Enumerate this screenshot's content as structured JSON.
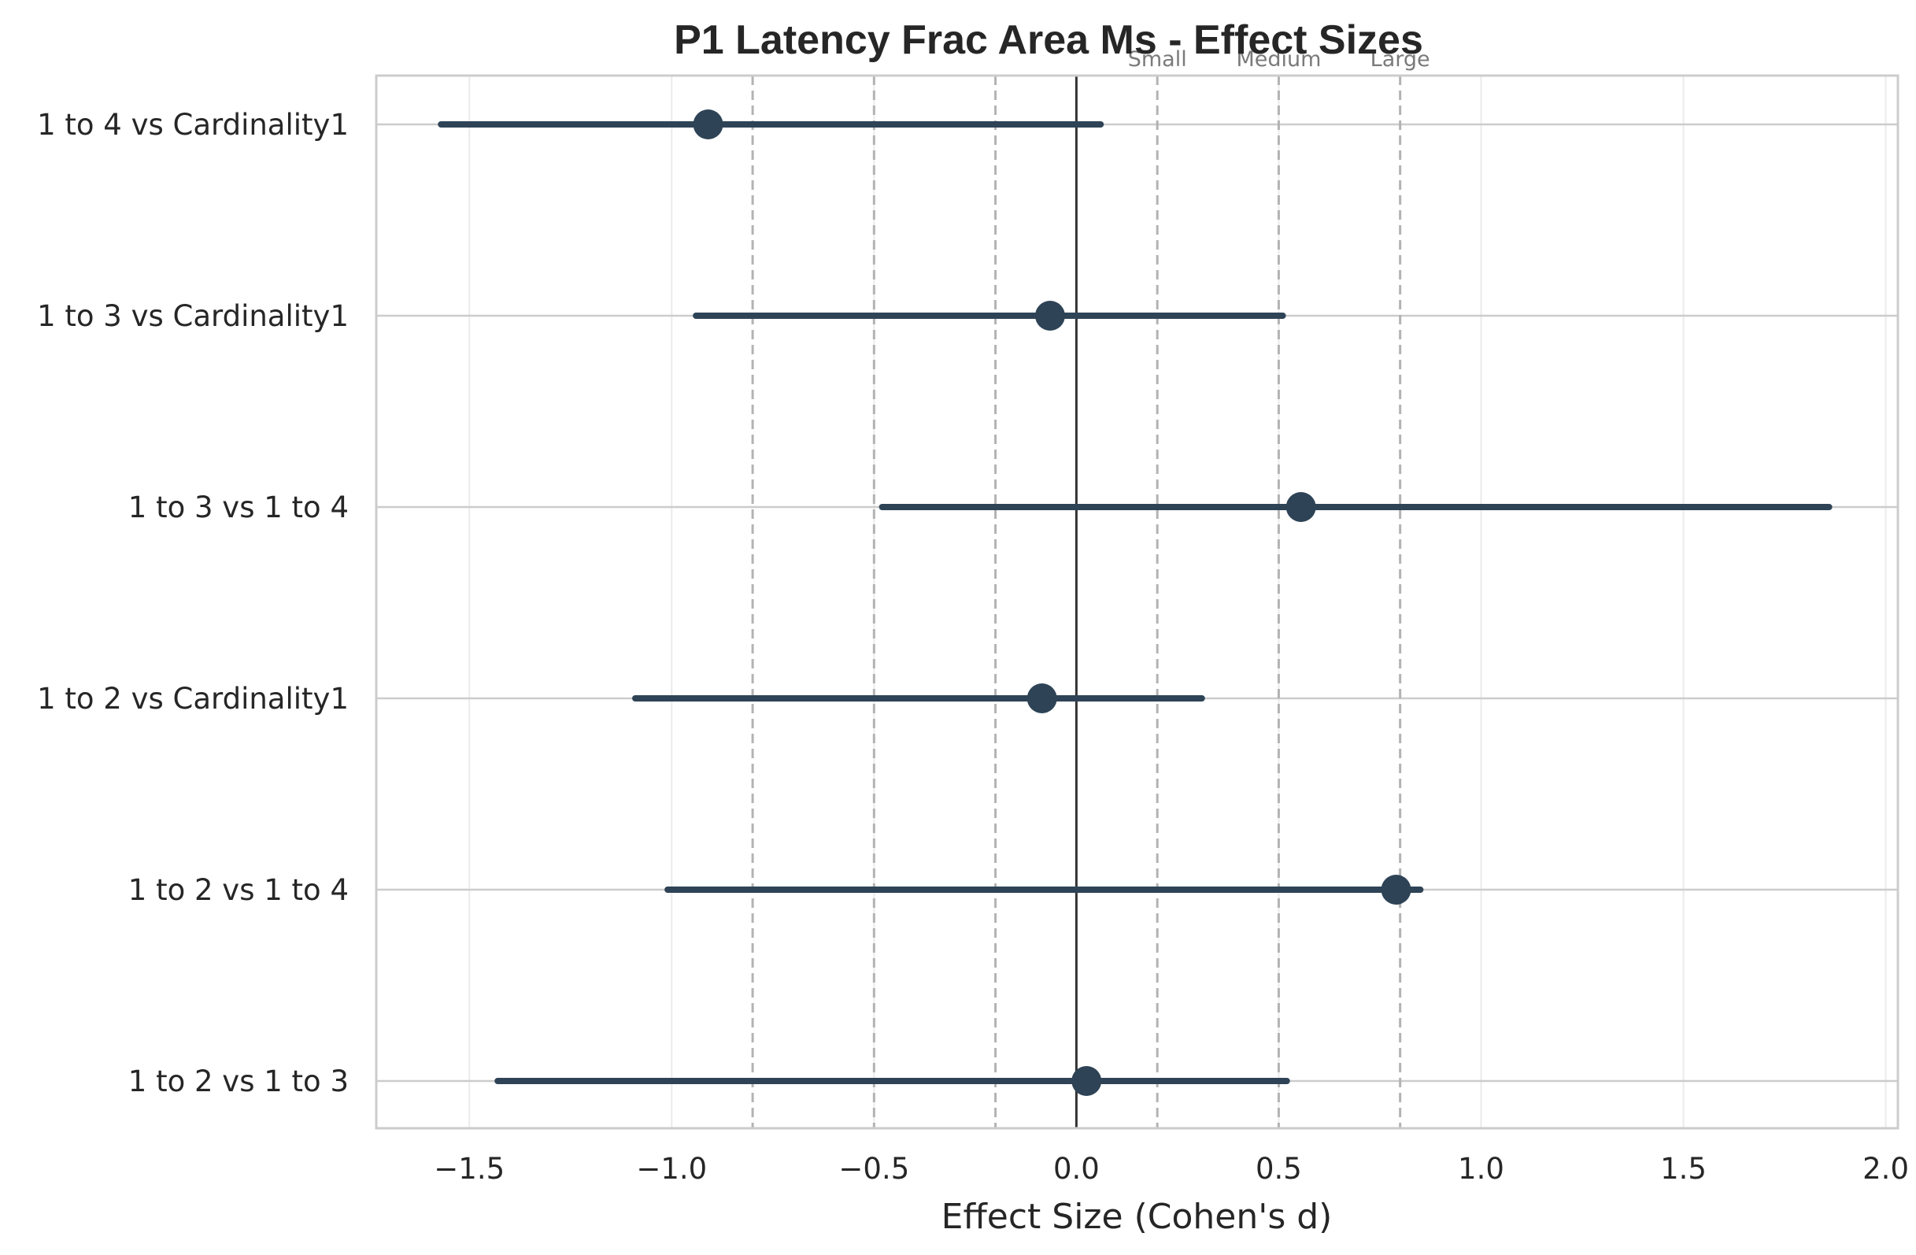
{
  "chart_data": {
    "type": "forest",
    "title": "P1 Latency Frac Area Ms - Effect Sizes",
    "xlabel": "Effect Size (Cohen's d)",
    "ylabel": "",
    "xlim": [
      -1.73,
      2.03
    ],
    "xticks": [
      -1.5,
      -1.0,
      -0.5,
      0.0,
      0.5,
      1.0,
      1.5,
      2.0
    ],
    "xtick_labels": [
      "−1.5",
      "−1.0",
      "−0.5",
      "0.0",
      "0.5",
      "1.0",
      "1.5",
      "2.0"
    ],
    "grid": true,
    "zero_line": 0.0,
    "reference_lines": [
      {
        "x": -0.8,
        "label": ""
      },
      {
        "x": -0.5,
        "label": ""
      },
      {
        "x": -0.2,
        "label": ""
      },
      {
        "x": 0.2,
        "label": "Small"
      },
      {
        "x": 0.5,
        "label": "Medium"
      },
      {
        "x": 0.8,
        "label": "Large"
      }
    ],
    "color": "#2e4356",
    "comparisons": [
      {
        "label": "1 to 4 vs Cardinality1",
        "d": -0.91,
        "ci_low": -1.57,
        "ci_high": 0.06
      },
      {
        "label": "1 to 3 vs Cardinality1",
        "d": -0.065,
        "ci_low": -0.94,
        "ci_high": 0.51
      },
      {
        "label": "1 to 3 vs 1 to 4",
        "d": 0.555,
        "ci_low": -0.48,
        "ci_high": 1.86
      },
      {
        "label": "1 to 2 vs Cardinality1",
        "d": -0.085,
        "ci_low": -1.09,
        "ci_high": 0.31
      },
      {
        "label": "1 to 2 vs 1 to 4",
        "d": 0.79,
        "ci_low": -1.01,
        "ci_high": 0.85
      },
      {
        "label": "1 to 2 vs 1 to 3",
        "d": 0.025,
        "ci_low": -1.43,
        "ci_high": 0.52
      }
    ]
  }
}
